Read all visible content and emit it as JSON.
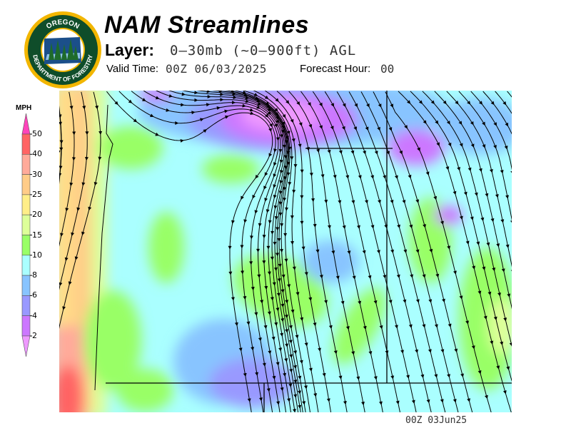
{
  "header": {
    "title": "NAM Streamlines",
    "layer_label": "Layer:",
    "layer_value": "0–30mb (~0–900ft) AGL",
    "valid_label": "Valid Time:",
    "valid_value": "00Z 06/03/2025",
    "forecast_hour_label": "Forecast Hour:",
    "forecast_hour_value": "00"
  },
  "logo": {
    "top_text": "OREGON",
    "bottom_text": "DEPARTMENT OF FORESTRY",
    "colors": {
      "ring": "#f2b600",
      "field": "#0f4d2a"
    }
  },
  "legend": {
    "unit": "MPH",
    "ticks": [
      "50",
      "40",
      "30",
      "25",
      "20",
      "15",
      "10",
      "8",
      "6",
      "4",
      "2"
    ],
    "colors": [
      "#ff6464",
      "#ffaa9a",
      "#ffcc88",
      "#ffee88",
      "#ddff99",
      "#99ff66",
      "#aaffff",
      "#88c4ff",
      "#9999ff",
      "#cc77ff"
    ],
    "over_color": "#ff44bb",
    "under_color": "#ee99ff"
  },
  "map": {
    "background_color": "#aaffff",
    "timestamp": "00Z 03Jun25"
  }
}
